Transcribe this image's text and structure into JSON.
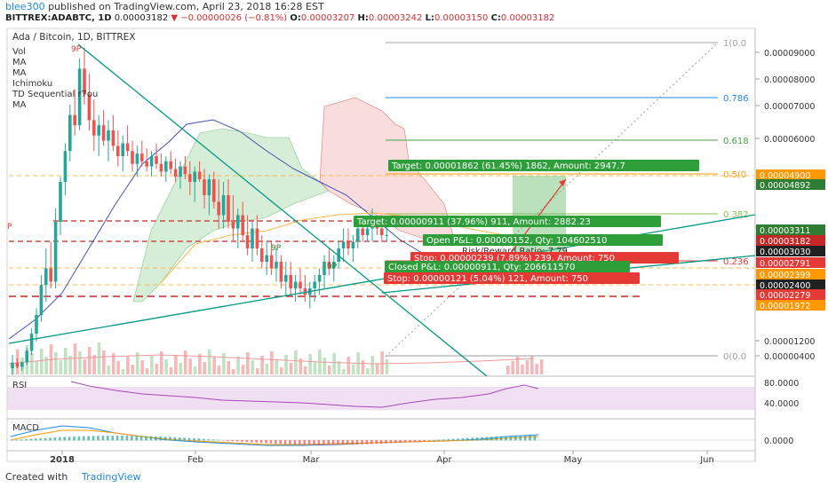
{
  "header": {
    "author": "blee300",
    "published_text": "published on TradingView.com, April 23, 2018 16:28 EST",
    "symbol": "BITTREX:ADABTC, 1D",
    "last": "0.00003182",
    "change": "▼ −0.00000026 (−0.81%)",
    "o_label": "O:",
    "o": "0.00003207",
    "h_label": "H:",
    "h": "0.00003242",
    "l_label": "L:",
    "l": "0.00003150",
    "c_label": "C:",
    "c": "0.00003182"
  },
  "legend": {
    "title": "Ada / Bitcoin, 1D, BITTREX",
    "items": [
      "Vol",
      "MA",
      "MA",
      "Ichimoku",
      "TD Sequential r7ou",
      "MA"
    ]
  },
  "chart_data": {
    "type": "candlestick",
    "y_scale": "linear",
    "ylim": [
      2e-07,
      9.8e-06
    ],
    "y_ticks": [
      "0.00009000",
      "0.00008000",
      "0.00007000",
      "0.00006000",
      "0.00003500",
      "0.00001200",
      "0.00000400"
    ],
    "x_ticks": [
      "2018",
      "Feb",
      "Mar",
      "Apr",
      "May",
      "Jun"
    ],
    "price_labels": [
      {
        "text": "0.00004900",
        "color": "#ff9800"
      },
      {
        "text": "0.00004892",
        "color": "#2e7d32"
      },
      {
        "text": "0.00003311",
        "color": "#2e7d32"
      },
      {
        "text": "0.00003182",
        "color": "#c62828"
      },
      {
        "text": "0.00003030",
        "color": "#212121"
      },
      {
        "text": "0.00002791",
        "color": "#e53935"
      },
      {
        "text": "0.00002399",
        "color": "#ff9800"
      },
      {
        "text": "0.00002400",
        "color": "#212121"
      },
      {
        "text": "0.00002279",
        "color": "#e53935"
      },
      {
        "text": "0.00001972",
        "color": "#ff9800"
      }
    ],
    "fib_levels": [
      {
        "label": "1(0.0",
        "color": "#9e9e9e"
      },
      {
        "label": "0.786",
        "color": "#1e88e5"
      },
      {
        "label": "0.618",
        "color": "#43a047"
      },
      {
        "label": "0.5(0",
        "color": "#ff9800"
      },
      {
        "label": "0.382",
        "color": "#8bc34a"
      },
      {
        "label": "0.236",
        "color": "#e53935"
      },
      {
        "label": "0(0.0",
        "color": "#9e9e9e"
      }
    ],
    "annotations": [
      {
        "text": "Target: 0.00001862 (61.45%) 1862, Amount: 2947.7",
        "kind": "target"
      },
      {
        "text": "Target: 0.00000911 (37.96%) 911, Amount: 2882.23",
        "kind": "target"
      },
      {
        "text": "Open P&L: 0.00000152, Qty: 104602510",
        "kind": "target"
      },
      {
        "text": "Risk/Reward Ratio: 7.79",
        "kind": "plain"
      },
      {
        "text": "Stop: 0.00000239 (7.89%) 239, Amount: 750",
        "kind": "stop"
      },
      {
        "text": "Closed P&L: 0.00000911, Qty: 206611570",
        "kind": "target"
      },
      {
        "text": "Stop: 0.00000121 (5.04%) 121, Amount: 750",
        "kind": "stop"
      },
      {
        "text": "9P",
        "kind": "td"
      },
      {
        "text": "9P",
        "kind": "td"
      },
      {
        "text": "9P",
        "kind": "td"
      },
      {
        "text": "P",
        "kind": "td"
      }
    ],
    "candles": [
      [
        12,
        14,
        11,
        12.8
      ],
      [
        12.8,
        13.5,
        12,
        12.2
      ],
      [
        12.2,
        13,
        11.6,
        12.9
      ],
      [
        12.9,
        15,
        12.5,
        14.6
      ],
      [
        14.6,
        18,
        14,
        17.2
      ],
      [
        17.2,
        21,
        16,
        20
      ],
      [
        20,
        26,
        19,
        24.5
      ],
      [
        24.5,
        30,
        22,
        27
      ],
      [
        27,
        31,
        24,
        25
      ],
      [
        25,
        36,
        24,
        34
      ],
      [
        34,
        42,
        32,
        40
      ],
      [
        40,
        55,
        38,
        52
      ],
      [
        52,
        70,
        48,
        66
      ],
      [
        66,
        76,
        58,
        62
      ],
      [
        62,
        88,
        60,
        84
      ],
      [
        84,
        92,
        70,
        74
      ],
      [
        74,
        82,
        60,
        64
      ],
      [
        64,
        72,
        52,
        58
      ],
      [
        58,
        66,
        50,
        62
      ],
      [
        62,
        68,
        54,
        56
      ],
      [
        56,
        64,
        48,
        60
      ],
      [
        60,
        66,
        52,
        54
      ],
      [
        54,
        60,
        46,
        50
      ],
      [
        50,
        58,
        44,
        55
      ],
      [
        55,
        62,
        50,
        52
      ],
      [
        52,
        56,
        44,
        47
      ],
      [
        47,
        54,
        42,
        51
      ],
      [
        51,
        56,
        46,
        48
      ],
      [
        48,
        53,
        44,
        46
      ],
      [
        46,
        52,
        42,
        50
      ],
      [
        50,
        55,
        45,
        47
      ],
      [
        47,
        51,
        42,
        44
      ],
      [
        44,
        50,
        40,
        48
      ],
      [
        48,
        52,
        43,
        45
      ],
      [
        45,
        49,
        40,
        42
      ],
      [
        42,
        48,
        39,
        46
      ],
      [
        46,
        50,
        41,
        43
      ],
      [
        43,
        48,
        38,
        40
      ],
      [
        40,
        46,
        37,
        44
      ],
      [
        44,
        48,
        40,
        41
      ],
      [
        41,
        45,
        36,
        38
      ],
      [
        38,
        43,
        35,
        41
      ],
      [
        41,
        44,
        36,
        37
      ],
      [
        37,
        41,
        33,
        35
      ],
      [
        35,
        40,
        33,
        38
      ],
      [
        38,
        41,
        33,
        34
      ],
      [
        34,
        38,
        31,
        33
      ],
      [
        33,
        36,
        30,
        35
      ],
      [
        35,
        37,
        31,
        32
      ],
      [
        32,
        35,
        29,
        30
      ],
      [
        30,
        34,
        28,
        33
      ],
      [
        33,
        35,
        29,
        30
      ],
      [
        30,
        32,
        27,
        28
      ],
      [
        28,
        31,
        26,
        29
      ],
      [
        29,
        31,
        26,
        27
      ],
      [
        27,
        30,
        25,
        28
      ],
      [
        28,
        29,
        24,
        25
      ],
      [
        25,
        28,
        23,
        26
      ],
      [
        26,
        28,
        23,
        24
      ],
      [
        24,
        26,
        22,
        25
      ],
      [
        25,
        27,
        23,
        24
      ],
      [
        24,
        26,
        22,
        23
      ],
      [
        23,
        25,
        21,
        24
      ],
      [
        24,
        26,
        22,
        25
      ],
      [
        25,
        27,
        23,
        26
      ],
      [
        26,
        29,
        24,
        28
      ],
      [
        28,
        30,
        26,
        27
      ],
      [
        27,
        29,
        25,
        28
      ],
      [
        28,
        31,
        27,
        30
      ],
      [
        30,
        33,
        28,
        31
      ],
      [
        31,
        33,
        29,
        30
      ],
      [
        30,
        32,
        28,
        31
      ],
      [
        31,
        34,
        30,
        33
      ],
      [
        33,
        35,
        31,
        32
      ],
      [
        32,
        34,
        31,
        33
      ],
      [
        33,
        36,
        31,
        34
      ],
      [
        34,
        35,
        32,
        33
      ],
      [
        33,
        35,
        31,
        32
      ],
      [
        32,
        34,
        31,
        32
      ]
    ],
    "rsi_ticks": [
      "80.0000",
      "40.0000"
    ],
    "macd_ticks": [
      "0.0000"
    ]
  },
  "panes": {
    "rsi_label": "RSI",
    "macd_label": "MACD"
  },
  "footer": {
    "created": "Created with",
    "brand": "TradingView"
  }
}
